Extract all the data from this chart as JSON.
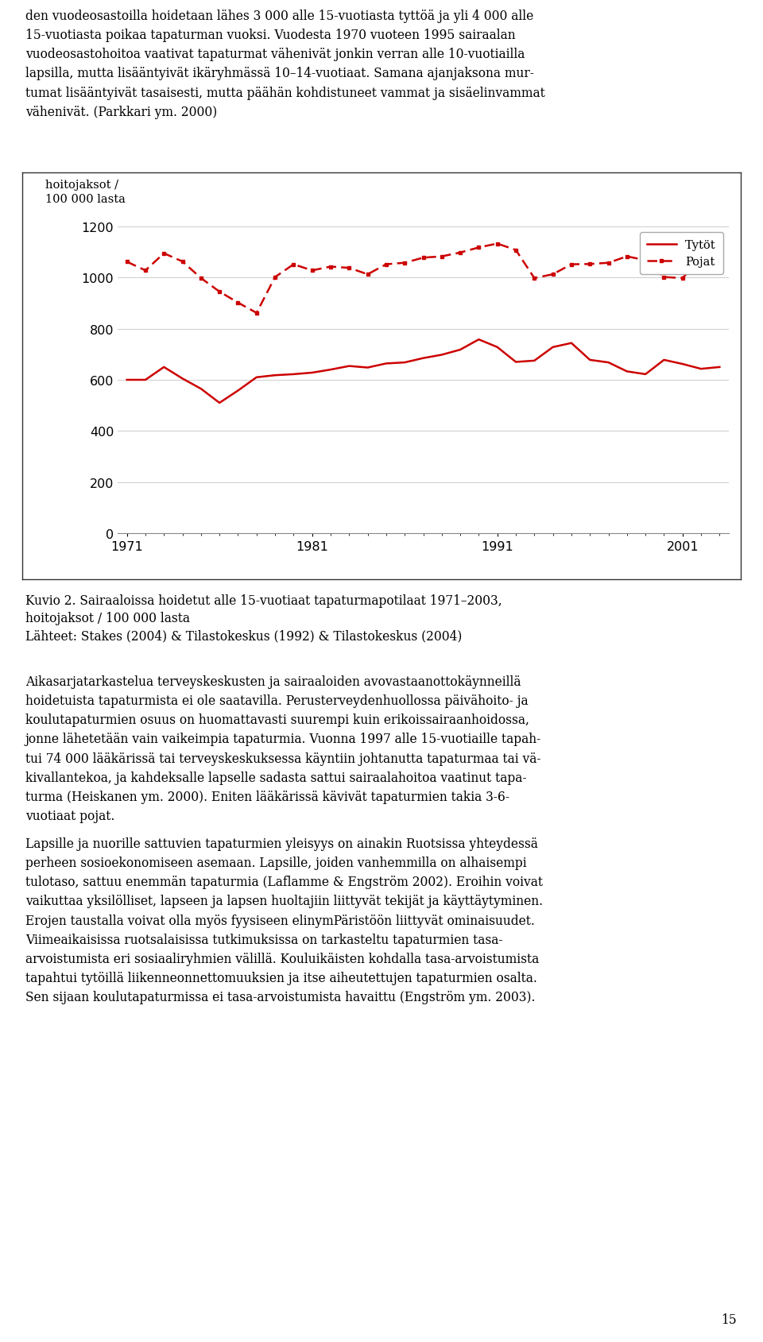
{
  "years": [
    1971,
    1972,
    1973,
    1974,
    1975,
    1976,
    1977,
    1978,
    1979,
    1980,
    1981,
    1982,
    1983,
    1984,
    1985,
    1986,
    1987,
    1988,
    1989,
    1990,
    1991,
    1992,
    1993,
    1994,
    1995,
    1996,
    1997,
    1998,
    1999,
    2000,
    2001,
    2002,
    2003
  ],
  "tytoet": [
    600,
    600,
    650,
    605,
    565,
    510,
    558,
    610,
    618,
    622,
    628,
    640,
    654,
    648,
    664,
    668,
    685,
    698,
    718,
    758,
    728,
    670,
    675,
    728,
    744,
    678,
    668,
    633,
    622,
    678,
    662,
    643,
    650
  ],
  "pojat": [
    1062,
    1028,
    1095,
    1063,
    998,
    945,
    902,
    862,
    1002,
    1052,
    1028,
    1043,
    1038,
    1013,
    1052,
    1058,
    1078,
    1083,
    1098,
    1118,
    1133,
    1108,
    998,
    1013,
    1052,
    1053,
    1058,
    1083,
    1068,
    1002,
    998,
    1073,
    1098
  ],
  "line_color": "#cc0000",
  "ylim": [
    0,
    1200
  ],
  "yticks": [
    0,
    200,
    400,
    600,
    800,
    1000,
    1200
  ],
  "xticks": [
    1971,
    1981,
    1991,
    2001
  ],
  "legend_tytoet": "Tytöt",
  "legend_pojat": "Pojat",
  "ylabel_line1": "hoitojaksot /",
  "ylabel_line2": "100 000 lasta",
  "background_color": "#ffffff",
  "grid_color": "#cccccc",
  "text_above": "den vuodeosastoilla hoidetaan lähes 3 000 alle 15-vuotiasta tyttöä ja yli 4 000 alle\n15-vuotiasta poikaa tapaturman vuoksi. Vuodesta 1970 vuoteen 1995 sairaalan\nvuodeosastohoitoa vaativat tapaturmat vähenivät jonkin verran alle 10-vuotiailla\nlapsilla, mutta lisääntyivät ikäryhmässä 10–14-vuotiaat. Samana ajanjaksona mur-\ntumat lisääntyivät tasaisesti, mutta päähän kohdistuneet vammat ja sisäelinvammat\nvähenivät. (Parkkari ym. 2000)",
  "caption1": "Kuvio 2. Sairaaloissa hoidetut alle 15-vuotiaat tapaturmapotilaat 1971–2003,",
  "caption2": "hoitojaksot / 100 000 lasta",
  "caption3": "Lähteet: Stakes (2004) & Tilastokeskus (1992) & Tilastokeskus (2004)",
  "para1": "Aikasarjatarkastelua terveyskeskusten ja sairaaloiden avovastaanottokäynneillä\nhoidetuista tapaturmista ei ole saatavilla. Perusterveydenhuollossa päivähoito- ja\nkoulutapaturmien osuus on huomattavasti suurempi kuin erikoissairaanhoidossa,\njonne lähetetään vain vaikeimpia tapaturmia. Vuonna 1997 alle 15-vuotiaille tapah-\ntui 74 000 lääkärissä tai terveyskeskuksessa käyntiin johtanutta tapaturmaa tai vä-\nkivallantekoa, ja kahdeksalle lapselle sadasta sattui sairaalahoitoa vaatinut tapa-\nturma (Heiskanen ym. 2000). Eniten lääkärissä kävivät tapaturmien takia 3-6-\nvuotiaat pojat.",
  "para2": "Lapsille ja nuorille sattuvien tapaturmien yleisyys on ainakin Ruotsissa yhteydessä\nperheen sosioekonomiseen asemaan. Lapsille, joiden vanhemmilla on alhaisempi\ntulotaso, sattuu enemmän tapaturmia (Laflamme & Engström 2002). Eroihin voivat\nvaikuttaa yksilölliset, lapseen ja lapsen huoltajiin liittyvät tekijät ja käyttäytyminen.\nErojen taustalla voivat olla myös fyysiseen elinymPäristöön liittyvät ominaisuudet.\nViimeaikaisissa ruotsalaisissa tutkimuksissa on tarkasteltu tapaturmien tasa-\narvoistumista eri sosiaaliryhmien välillä. Kouluikäisten kohdalla tasa-arvoistumista\ntapahtui tytöillä liikenneonnettomuuksien ja itse aiheutettujen tapaturmien osalta.\nSen sijaan koulutapaturmissa ei tasa-arvoistumista havaittu (Engström ym. 2003).",
  "page_number": "15"
}
